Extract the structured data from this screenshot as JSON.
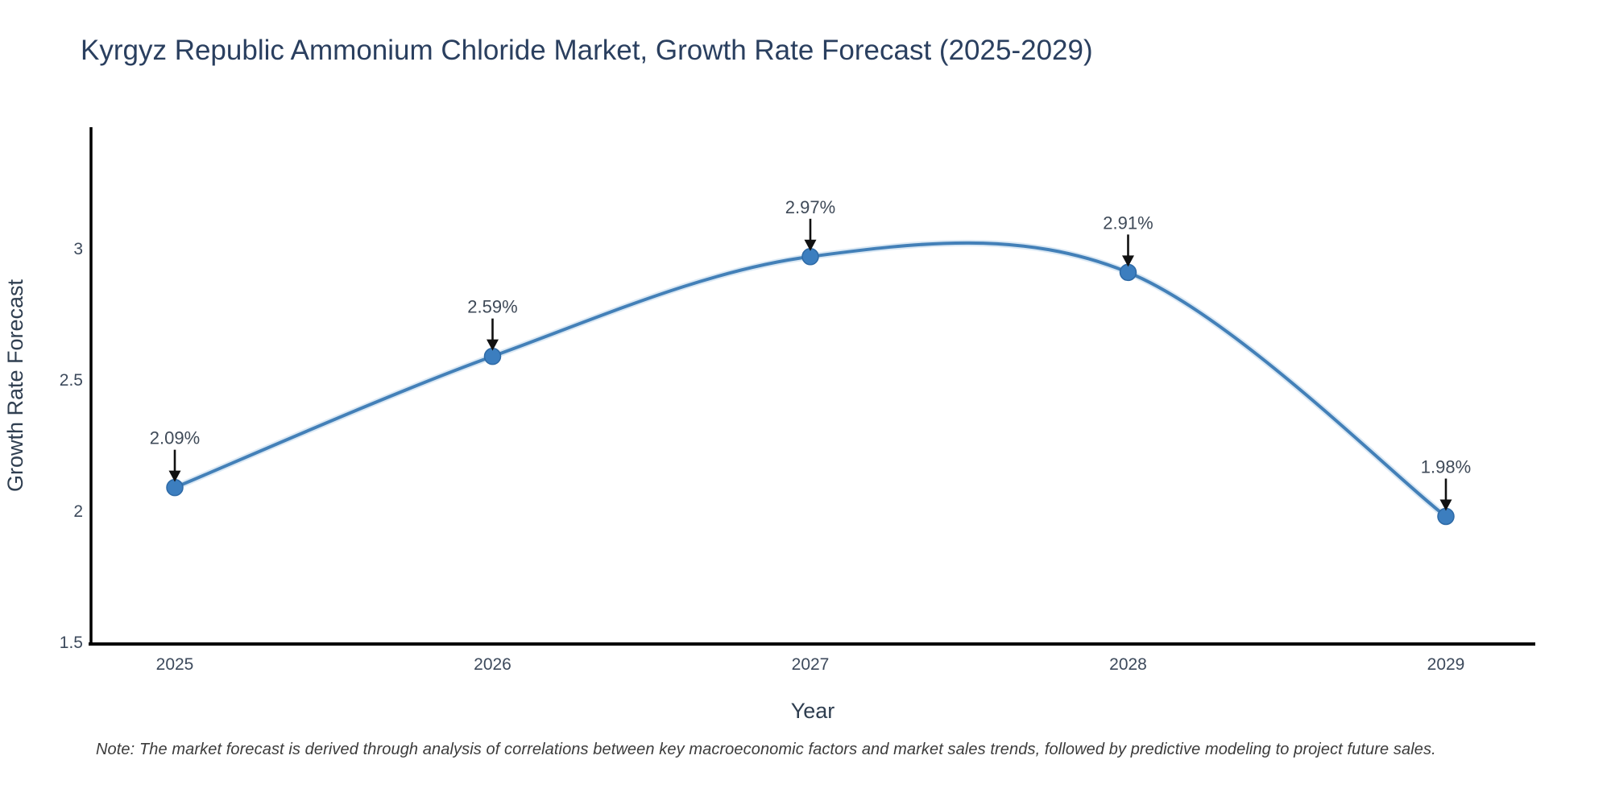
{
  "title": "Kyrgyz Republic Ammonium Chloride Market, Growth Rate Forecast (2025-2029)",
  "note": "Note: The market forecast is derived through analysis of correlations between key macroeconomic factors and market sales trends, followed by predictive modeling to project future sales.",
  "chart_data": {
    "type": "line",
    "line_shape": "spline",
    "title": "Kyrgyz Republic Ammonium Chloride Market, Growth Rate Forecast (2025-2029)",
    "xlabel": "Year",
    "ylabel": "Growth Rate Forecast",
    "x": [
      2025,
      2026,
      2027,
      2028,
      2029
    ],
    "values": [
      2.09,
      2.59,
      2.97,
      2.91,
      1.98
    ],
    "point_labels": [
      "2.09%",
      "2.59%",
      "2.97%",
      "2.91%",
      "1.98%"
    ],
    "xtick_labels": [
      "2025",
      "2026",
      "2027",
      "2028",
      "2029"
    ],
    "yticks": [
      1.5,
      2,
      2.5,
      3
    ],
    "ytick_labels": [
      "1.5",
      "2",
      "2.5",
      "3"
    ],
    "ylim": [
      1.5,
      3.46
    ],
    "grid": false,
    "legend": "none",
    "annotations": "black down-arrows from each percentage label to its data point",
    "colors": {
      "line": "#4380b8",
      "line_halo": "#aecbe6",
      "marker": "#3c7ebf",
      "marker_edge": "#2e6aa6",
      "arrow": "#111111",
      "axis_line": "#000000",
      "title_text": "#2a3f5f",
      "tick_text": "#3d4a5c",
      "note_text": "#3c3c3c"
    }
  }
}
